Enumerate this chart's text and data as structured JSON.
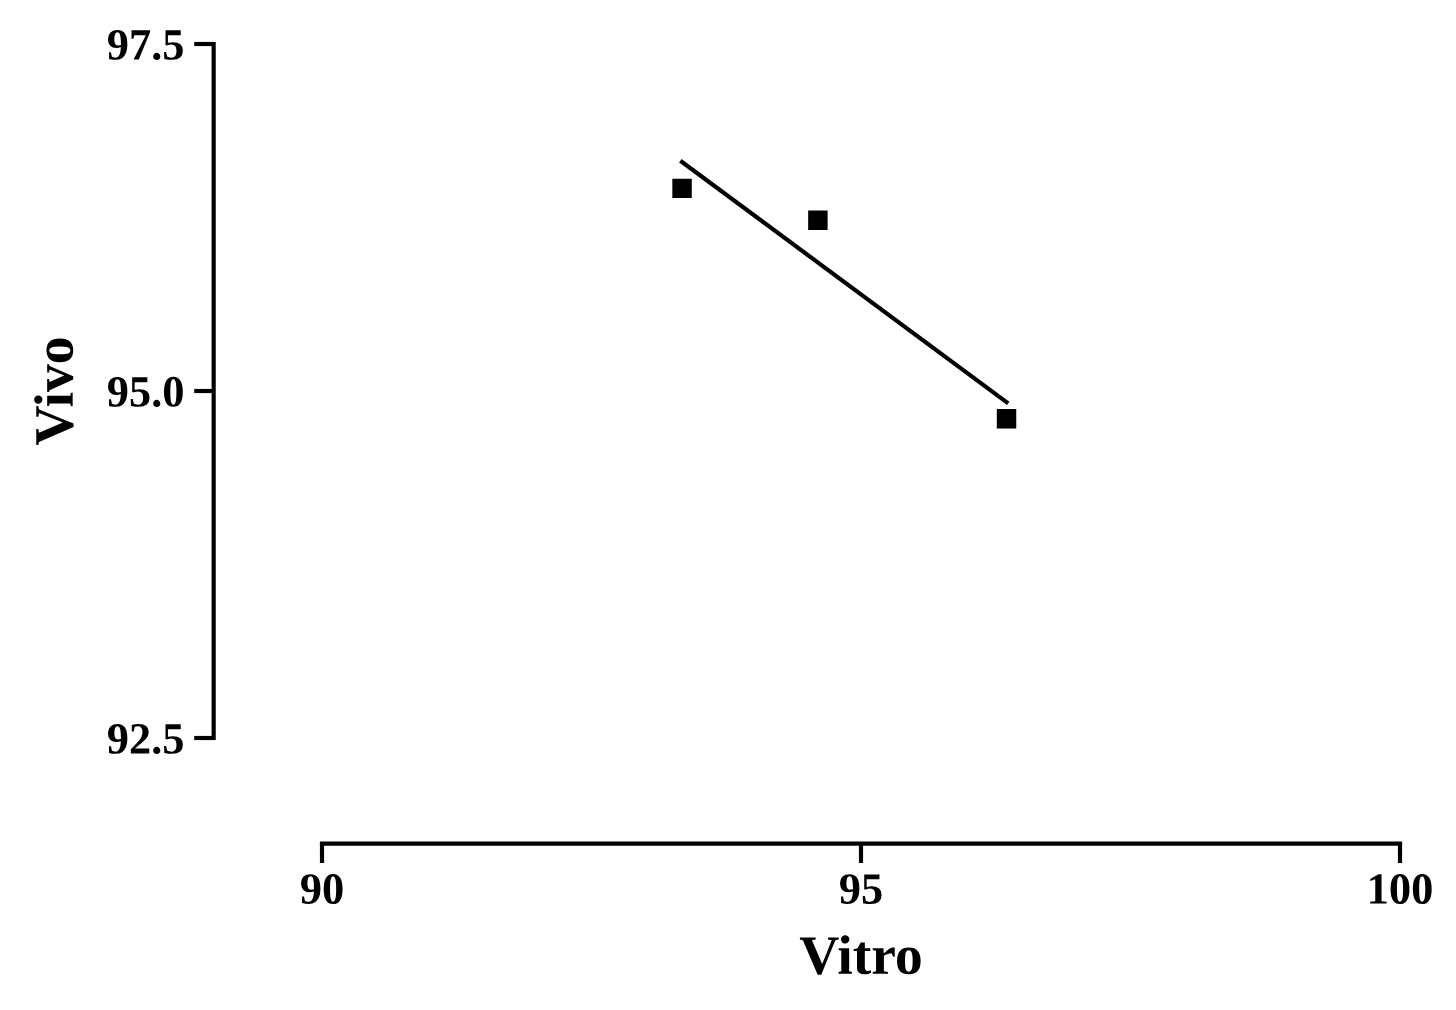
{
  "chart_data": {
    "type": "scatter",
    "xlabel": "Vitro",
    "ylabel": "Vivo",
    "x": [
      93.34,
      94.6,
      96.35
    ],
    "values": [
      96.46,
      96.23,
      94.8
    ],
    "color": "#000000",
    "marker": "square",
    "series": [
      {
        "type": "line",
        "color": "#000000",
        "marker": "none",
        "x": [
          93.34,
          96.35
        ],
        "values": [
          96.65,
          94.92
        ]
      }
    ],
    "xlim": [
      90,
      100
    ],
    "xticks": [
      90,
      95,
      100
    ],
    "ylim": [
      92.5,
      97.5
    ],
    "yticks": [
      {
        "value": 92.5,
        "label": "92.5"
      },
      {
        "value": 95,
        "label": "95.0"
      },
      {
        "value": 97.5,
        "label": "97.5"
      }
    ],
    "grid": false,
    "legend": false
  }
}
